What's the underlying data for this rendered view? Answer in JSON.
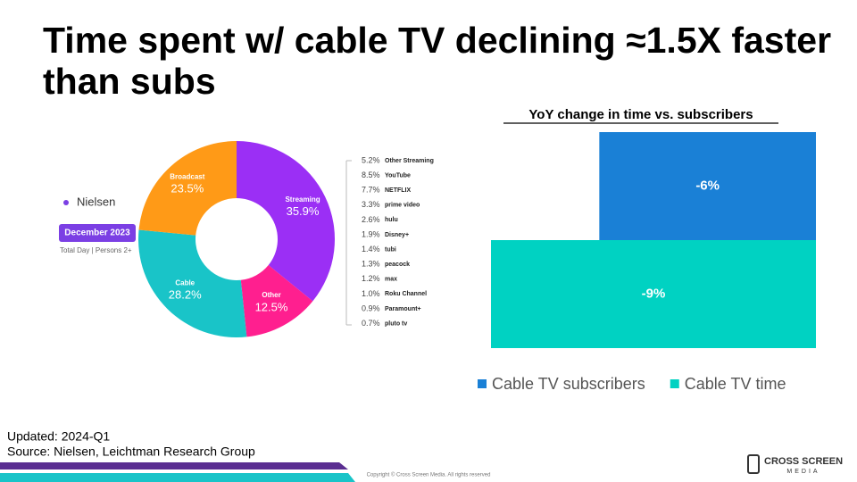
{
  "title": "Time spent w/ cable TV declining ≈1.5X faster than subs",
  "updated": "Updated: 2024-Q1",
  "source": "Source: Nielsen, Leichtman Research Group",
  "copyright": "Copyright © Cross Screen Media. All rights reserved",
  "logo": {
    "line1": "CROSS SCREEN",
    "line2": "MEDIA"
  },
  "chart_data": [
    {
      "type": "pie",
      "donut": true,
      "brand": "Nielsen",
      "period": "December 2023",
      "subtitle": "Total Day | Persons 2+",
      "categories": [
        "Streaming",
        "Other",
        "Cable",
        "Broadcast"
      ],
      "values": [
        35.9,
        12.5,
        28.2,
        23.5
      ],
      "value_labels": [
        "35.9%",
        "12.5%",
        "28.2%",
        "23.5%"
      ],
      "colors": [
        "#9b2ff5",
        "#ff1f8f",
        "#19c4c8",
        "#ff9a17"
      ],
      "breakdown": {
        "categories": [
          "Other Streaming",
          "YouTube",
          "NETFLIX",
          "prime video",
          "hulu",
          "Disney+",
          "tubi",
          "peacock",
          "max",
          "Roku Channel",
          "Paramount+",
          "pluto tv"
        ],
        "values": [
          5.2,
          8.5,
          7.7,
          3.3,
          2.6,
          1.9,
          1.4,
          1.3,
          1.2,
          1.0,
          0.9,
          0.7
        ],
        "value_labels": [
          "5.2%",
          "8.5%",
          "7.7%",
          "3.3%",
          "2.6%",
          "1.9%",
          "1.4%",
          "1.3%",
          "1.2%",
          "1.0%",
          "0.9%",
          "0.7%"
        ]
      }
    },
    {
      "type": "bar",
      "orientation": "horizontal",
      "title": "YoY change in time vs. subscribers",
      "categories": [
        null
      ],
      "xlim": [
        -9,
        0
      ],
      "legend": "bottom",
      "series": [
        {
          "name": "Cable TV subscribers",
          "color": "#1a80d6",
          "values": [
            -6
          ],
          "value_labels": [
            "-6%"
          ]
        },
        {
          "name": "Cable TV time",
          "color": "#00d2c2",
          "values": [
            -9
          ],
          "value_labels": [
            "-9%"
          ]
        }
      ]
    }
  ]
}
